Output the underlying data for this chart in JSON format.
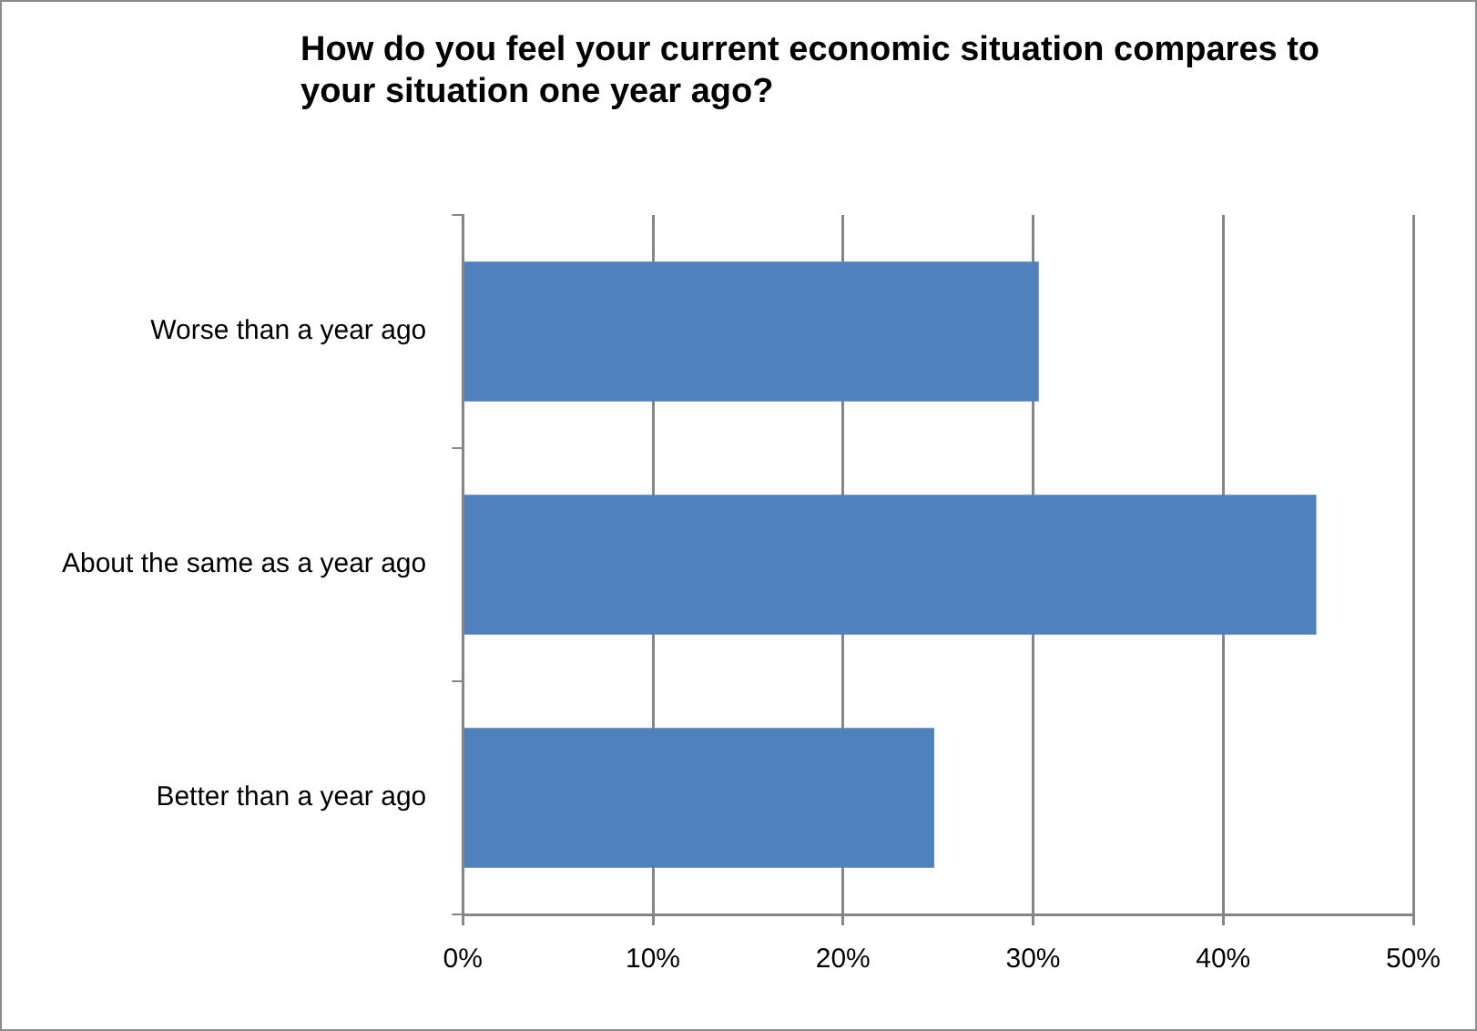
{
  "chart_data": {
    "type": "bar",
    "orientation": "horizontal",
    "title": "How do you feel your current economic situation compares to your situation one year ago?",
    "categories": [
      "Worse than a year ago",
      "About the same as a year ago",
      "Better than a year ago"
    ],
    "values": [
      30.3,
      44.9,
      24.8
    ],
    "color": "#4f81bd",
    "xlim": [
      0,
      50
    ],
    "xticks": [
      {
        "value": 0,
        "label": "0%"
      },
      {
        "value": 10,
        "label": "10%"
      },
      {
        "value": 20,
        "label": "20%"
      },
      {
        "value": 30,
        "label": "30%"
      },
      {
        "value": 40,
        "label": "40%"
      },
      {
        "value": 50,
        "label": "50%"
      }
    ],
    "grid": "x",
    "legend": false
  }
}
